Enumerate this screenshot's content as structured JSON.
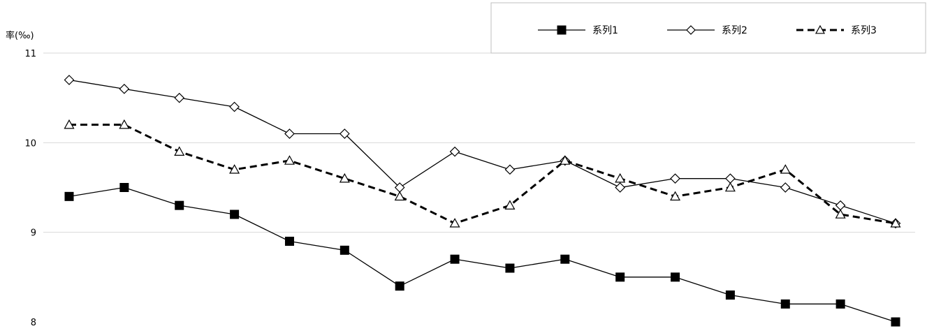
{
  "chart_data": {
    "type": "line",
    "ylabel": "率(‰)",
    "ylim": [
      8,
      11
    ],
    "yticks": [
      "11",
      "10",
      "9",
      "8"
    ],
    "grid": true,
    "legend_position": "top-right",
    "x_count": 16,
    "series": [
      {
        "name": "系列1",
        "marker": "square-filled",
        "line_style": "solid",
        "color": "#000000",
        "values": [
          9.4,
          9.5,
          9.3,
          9.2,
          8.9,
          8.8,
          8.4,
          8.7,
          8.6,
          8.7,
          8.5,
          8.5,
          8.3,
          8.2,
          8.2,
          8.0
        ]
      },
      {
        "name": "系列2",
        "marker": "diamond-open",
        "line_style": "solid",
        "color": "#000000",
        "values": [
          10.7,
          10.6,
          10.5,
          10.4,
          10.1,
          10.1,
          9.5,
          9.9,
          9.7,
          9.8,
          9.5,
          9.6,
          9.6,
          9.5,
          9.3,
          9.1
        ]
      },
      {
        "name": "系列3",
        "marker": "triangle-open",
        "line_style": "dashed",
        "color": "#000000",
        "values": [
          10.2,
          10.2,
          9.9,
          9.7,
          9.8,
          9.6,
          9.4,
          9.1,
          9.3,
          9.8,
          9.6,
          9.4,
          9.5,
          9.7,
          9.2,
          9.1
        ]
      }
    ]
  }
}
